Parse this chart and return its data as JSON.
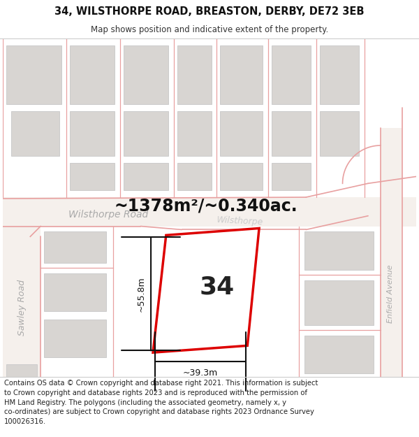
{
  "title": "34, WILSTHORPE ROAD, BREASTON, DERBY, DE72 3EB",
  "subtitle": "Map shows position and indicative extent of the property.",
  "area_label": "~1378m²/~0.340ac.",
  "number_label": "34",
  "dim_width_label": "~39.3m",
  "dim_height_label": "~55.8m",
  "road_label_wilsthorpe": "Wilsthorpe Road",
  "road_label_wilsthorpe2": "Wilsthorpe",
  "road_label_enfield": "Enfield Avenue",
  "road_label_sawley": "Sawley Road",
  "footer_text": "Contains OS data © Crown copyright and database right 2021. This information is subject to Crown copyright and database rights 2023 and is reproduced with the permission of HM Land Registry. The polygons (including the associated geometry, namely x, y co-ordinates) are subject to Crown copyright and database rights 2023 Ordnance Survey 100026316.",
  "map_bg": "#ffffff",
  "road_bg": "#f5f0ec",
  "road_line_color": "#e8a0a0",
  "building_fill": "#d8d5d2",
  "building_edge": "#cccccc",
  "property_fill": "#ffffff",
  "property_stroke": "#dd0000",
  "dim_color": "#111111",
  "title_color": "#111111",
  "subtitle_color": "#333333",
  "road_text_color": "#bbbbbb",
  "footer_color": "#222222",
  "title_fontsize": 10.5,
  "subtitle_fontsize": 8.5,
  "footer_fontsize": 7.2,
  "area_fontsize": 17,
  "number_fontsize": 26,
  "dim_fontsize": 9
}
